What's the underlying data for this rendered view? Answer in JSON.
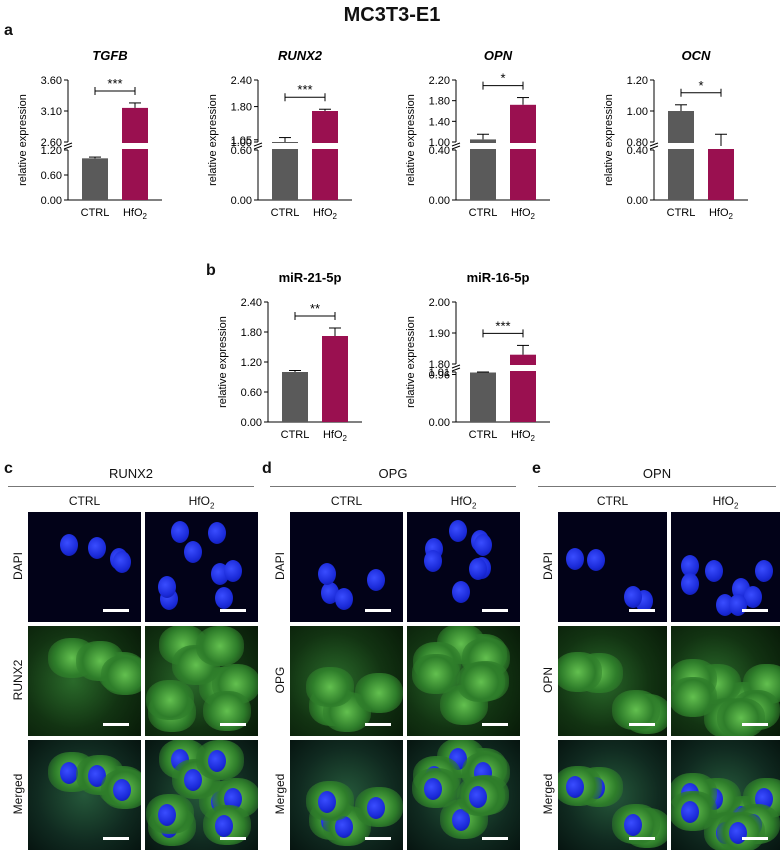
{
  "title": "MC3T3-E1",
  "panels": {
    "a": "a",
    "b": "b",
    "c": "c",
    "d": "d",
    "e": "e"
  },
  "chart_data": [
    {
      "type": "bar",
      "title": "TGFB",
      "title_italic": true,
      "ylabel": "relative expression",
      "categories": [
        "CTRL",
        "HfO2"
      ],
      "values": [
        1.0,
        3.15
      ],
      "errors": [
        0.03,
        0.08
      ],
      "colors": [
        "#5a5a5a",
        "#9a1050"
      ],
      "y_ticks_lower": [
        "0.00",
        "0.60",
        "1.20"
      ],
      "y_ticks_upper": [
        "2.60",
        "3.10",
        "3.60"
      ],
      "significance": "***"
    },
    {
      "type": "bar",
      "title": "RUNX2",
      "title_italic": true,
      "ylabel": "relative expression",
      "categories": [
        "CTRL",
        "HfO2"
      ],
      "values": [
        1.0,
        1.7
      ],
      "errors": [
        0.1,
        0.04
      ],
      "colors": [
        "#5a5a5a",
        "#9a1050"
      ],
      "y_ticks_lower": [
        "0.00",
        "0.60"
      ],
      "y_ticks_upper": [
        "1.00",
        "1.05",
        "1.80",
        "2.40"
      ],
      "significance": "***"
    },
    {
      "type": "bar",
      "title": "OPN",
      "title_italic": true,
      "ylabel": "relative expression",
      "categories": [
        "CTRL",
        "HfO2"
      ],
      "values": [
        1.05,
        1.72
      ],
      "errors": [
        0.1,
        0.14
      ],
      "colors": [
        "#5a5a5a",
        "#9a1050"
      ],
      "y_ticks_lower": [
        "0.00",
        "0.40"
      ],
      "y_ticks_upper": [
        "1.00",
        "1.40",
        "1.80",
        "2.20"
      ],
      "significance": "*"
    },
    {
      "type": "bar",
      "title": "OCN",
      "title_italic": true,
      "ylabel": "relative expression",
      "categories": [
        "CTRL",
        "HfO2"
      ],
      "values": [
        1.0,
        0.77
      ],
      "errors": [
        0.04,
        0.08
      ],
      "colors": [
        "#5a5a5a",
        "#9a1050"
      ],
      "y_ticks_lower": [
        "0.00",
        "0.40"
      ],
      "y_ticks_upper": [
        "0.80",
        "1.00",
        "1.20"
      ],
      "significance": "*"
    },
    {
      "type": "bar",
      "title": "miR-21-5p",
      "title_italic": false,
      "ylabel": "relative expression",
      "categories": [
        "CTRL",
        "HfO2"
      ],
      "values": [
        1.0,
        1.72
      ],
      "errors": [
        0.03,
        0.16
      ],
      "colors": [
        "#5a5a5a",
        "#9a1050"
      ],
      "y_ticks": [
        "0.00",
        "0.60",
        "1.20",
        "1.80",
        "2.40"
      ],
      "significance": "**"
    },
    {
      "type": "bar",
      "title": "miR-16-5p",
      "title_italic": false,
      "ylabel": "relative expression",
      "categories": [
        "CTRL",
        "HfO2"
      ],
      "values": [
        1.0,
        1.83
      ],
      "errors": [
        0.01,
        0.03
      ],
      "colors": [
        "#5a5a5a",
        "#9a1050"
      ],
      "y_ticks_lower": [
        "0.00",
        "0.96",
        "1.01"
      ],
      "y_ticks_upper": [
        "1.80",
        "1.90",
        "2.00"
      ],
      "significance": "***"
    }
  ],
  "if_panels": [
    {
      "target": "RUNX2",
      "cols": [
        "CTRL",
        "HfO2"
      ],
      "rows": [
        "DAPI",
        "RUNX2",
        "Merged"
      ]
    },
    {
      "target": "OPG",
      "cols": [
        "CTRL",
        "HfO2"
      ],
      "rows": [
        "DAPI",
        "OPG",
        "Merged"
      ]
    },
    {
      "target": "OPN",
      "cols": [
        "CTRL",
        "HfO2"
      ],
      "rows": [
        "DAPI",
        "OPN",
        "Merged"
      ]
    }
  ]
}
